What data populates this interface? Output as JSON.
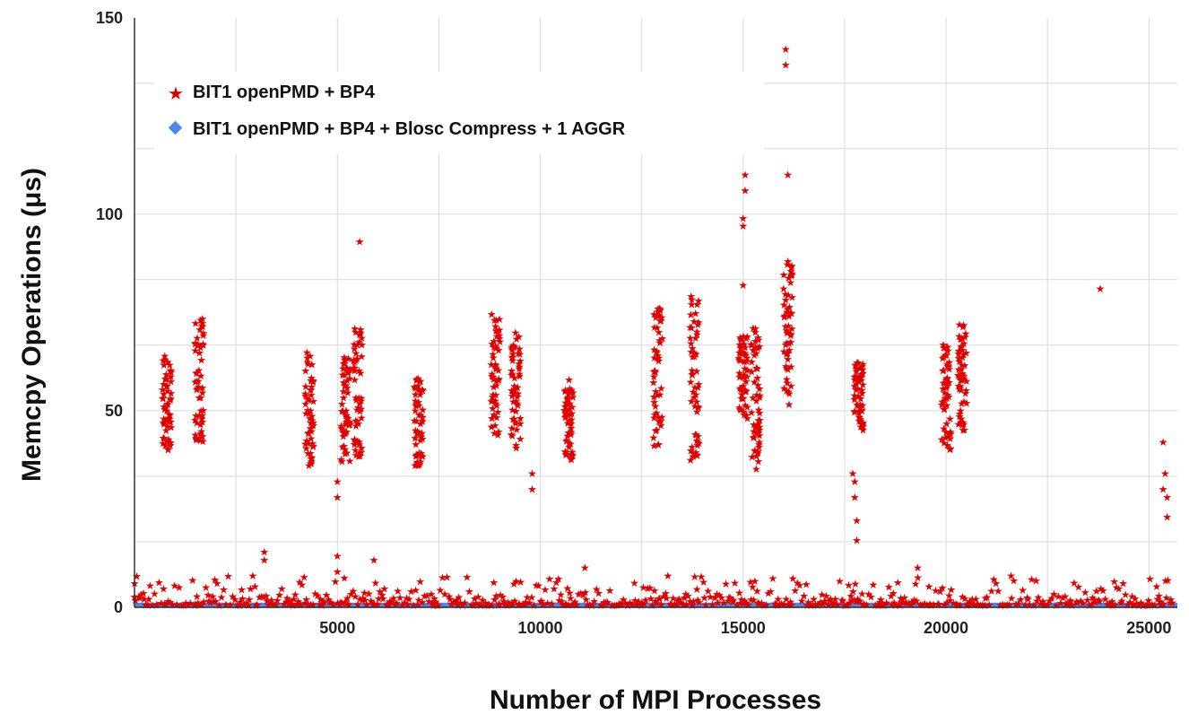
{
  "chart_data": {
    "type": "scatter",
    "xlabel": "Number of MPI Processes",
    "ylabel": "Memcpy Operations (μs)",
    "xlim": [
      0,
      25700
    ],
    "ylim": [
      0,
      150
    ],
    "x_ticks": [
      5000,
      10000,
      15000,
      20000,
      25000
    ],
    "x_tick_labels": [
      "5000",
      "10000",
      "15000",
      "20000",
      "25000"
    ],
    "y_ticks": [
      0,
      50,
      100,
      150
    ],
    "y_tick_labels": [
      "0",
      "50",
      "100",
      "150"
    ],
    "grid": true,
    "legend_position": "top-left",
    "colors": {
      "series1": "#e00000",
      "series2": "#4d8ae8",
      "grid": "#d9d9d9",
      "axis": "#333333"
    },
    "series": [
      {
        "name": "BIT1 openPMD + BP4",
        "marker": "star",
        "color": "#e00000",
        "clusters": [
          {
            "x": 800,
            "ymin": 40,
            "ymax": 65
          },
          {
            "x": 1600,
            "ymin": 42,
            "ymax": 74
          },
          {
            "x": 4300,
            "ymin": 36,
            "ymax": 65
          },
          {
            "x": 5200,
            "ymin": 37,
            "ymax": 66
          },
          {
            "x": 5500,
            "ymin": 38,
            "ymax": 71
          },
          {
            "x": 7000,
            "ymin": 36,
            "ymax": 59
          },
          {
            "x": 8900,
            "ymin": 43,
            "ymax": 75
          },
          {
            "x": 9400,
            "ymin": 40,
            "ymax": 70
          },
          {
            "x": 10700,
            "ymin": 37,
            "ymax": 58
          },
          {
            "x": 12900,
            "ymin": 41,
            "ymax": 76
          },
          {
            "x": 13800,
            "ymin": 37,
            "ymax": 80
          },
          {
            "x": 15000,
            "ymin": 48,
            "ymax": 69
          },
          {
            "x": 15300,
            "ymin": 35,
            "ymax": 72
          },
          {
            "x": 16100,
            "ymin": 51,
            "ymax": 88
          },
          {
            "x": 17850,
            "ymin": 45,
            "ymax": 63
          },
          {
            "x": 20000,
            "ymin": 40,
            "ymax": 67
          },
          {
            "x": 20400,
            "ymin": 45,
            "ymax": 72
          }
        ],
        "points": [
          [
            5550,
            93
          ],
          [
            3200,
            14
          ],
          [
            3200,
            12
          ],
          [
            5000,
            32
          ],
          [
            5000,
            28
          ],
          [
            5000,
            13
          ],
          [
            5000,
            9
          ],
          [
            5900,
            12
          ],
          [
            9800,
            34
          ],
          [
            9800,
            30
          ],
          [
            11100,
            10
          ],
          [
            15000,
            82
          ],
          [
            15050,
            110
          ],
          [
            15050,
            106
          ],
          [
            15000,
            99
          ],
          [
            15000,
            97
          ],
          [
            16050,
            142
          ],
          [
            16050,
            138
          ],
          [
            16100,
            110
          ],
          [
            16100,
            88
          ],
          [
            17700,
            34
          ],
          [
            17750,
            32
          ],
          [
            17750,
            28
          ],
          [
            17800,
            22
          ],
          [
            17800,
            17
          ],
          [
            23800,
            81
          ],
          [
            25350,
            42
          ],
          [
            25400,
            34
          ],
          [
            25350,
            30
          ],
          [
            25450,
            28
          ],
          [
            25450,
            23
          ],
          [
            0,
            6
          ],
          [
            19300,
            10
          ],
          [
            21600,
            8
          ]
        ],
        "baseline": {
          "ymin": 0.5,
          "ymax": 8
        }
      },
      {
        "name": "BIT1 openPMD + BP4 + Blosc Compress + 1 AGGR",
        "marker": "diamond",
        "color": "#4d8ae8",
        "constant_value": 0.5,
        "x_range": [
          0,
          25700
        ]
      }
    ]
  }
}
